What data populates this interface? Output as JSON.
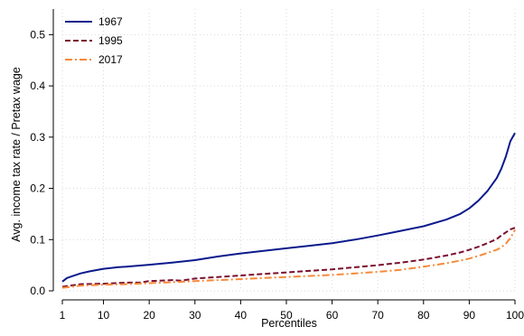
{
  "chart_data": {
    "type": "line",
    "title": "",
    "xlabel": "Percentiles",
    "ylabel": "Avg. income tax rate / Pretax wage",
    "xlim": [
      1,
      100
    ],
    "ylim": [
      0,
      0.55
    ],
    "xticks": [
      1,
      10,
      20,
      30,
      40,
      50,
      60,
      70,
      80,
      90,
      100
    ],
    "yticks": [
      0.0,
      0.1,
      0.2,
      0.3,
      0.4,
      0.5
    ],
    "ytick_labels": [
      "0.0",
      "0.1",
      "0.2",
      "0.3",
      "0.4",
      "0.5"
    ],
    "grid": true,
    "legend_position": "top-left",
    "series": [
      {
        "name": "1967",
        "color": "#0b1a8c",
        "dash": "solid",
        "x": [
          1,
          2,
          3,
          5,
          7,
          10,
          13,
          15,
          20,
          25,
          30,
          35,
          40,
          45,
          50,
          55,
          60,
          65,
          70,
          75,
          80,
          85,
          88,
          90,
          92,
          94,
          96,
          97,
          98,
          99,
          100
        ],
        "y": [
          0.018,
          0.025,
          0.028,
          0.034,
          0.038,
          0.043,
          0.046,
          0.047,
          0.051,
          0.055,
          0.06,
          0.067,
          0.073,
          0.078,
          0.083,
          0.088,
          0.093,
          0.1,
          0.108,
          0.117,
          0.126,
          0.139,
          0.15,
          0.161,
          0.176,
          0.195,
          0.22,
          0.238,
          0.262,
          0.292,
          0.308
        ]
      },
      {
        "name": "1995",
        "color": "#7a0f2e",
        "dash": "dashed",
        "x": [
          1,
          5,
          10,
          15,
          18,
          20,
          25,
          27,
          30,
          35,
          40,
          45,
          50,
          55,
          60,
          65,
          70,
          75,
          80,
          85,
          88,
          90,
          92,
          94,
          96,
          97,
          98,
          99,
          100
        ],
        "y": [
          0.008,
          0.013,
          0.014,
          0.016,
          0.016,
          0.019,
          0.021,
          0.02,
          0.024,
          0.027,
          0.03,
          0.033,
          0.036,
          0.039,
          0.042,
          0.046,
          0.05,
          0.055,
          0.061,
          0.069,
          0.075,
          0.08,
          0.086,
          0.093,
          0.101,
          0.108,
          0.114,
          0.12,
          0.123
        ]
      },
      {
        "name": "2017",
        "color": "#f58a3a",
        "dash": "dashdot",
        "x": [
          1,
          5,
          10,
          15,
          20,
          25,
          30,
          35,
          40,
          45,
          50,
          55,
          60,
          65,
          70,
          75,
          80,
          85,
          88,
          90,
          92,
          94,
          96,
          97,
          98,
          99,
          100
        ],
        "y": [
          0.006,
          0.01,
          0.012,
          0.013,
          0.015,
          0.017,
          0.019,
          0.021,
          0.023,
          0.025,
          0.027,
          0.029,
          0.031,
          0.034,
          0.037,
          0.041,
          0.047,
          0.054,
          0.059,
          0.063,
          0.068,
          0.074,
          0.08,
          0.085,
          0.092,
          0.103,
          0.119
        ]
      }
    ]
  }
}
